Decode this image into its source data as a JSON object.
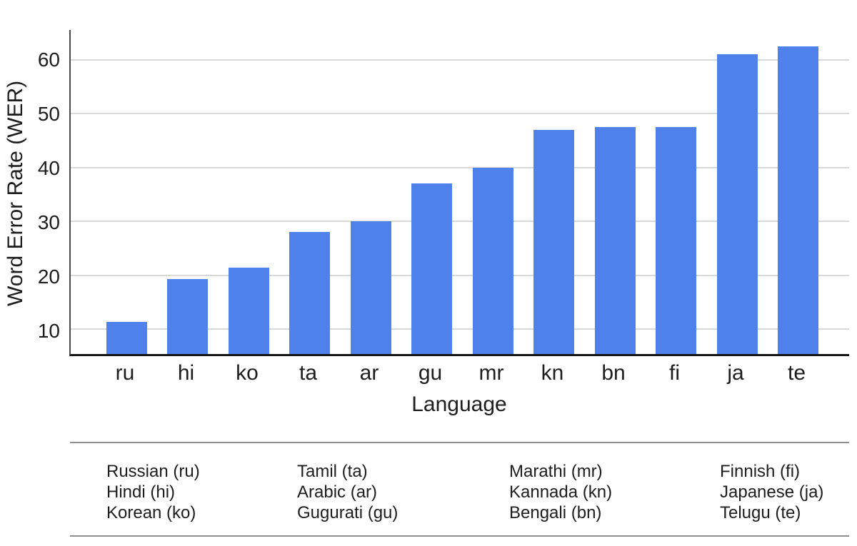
{
  "chart_data": {
    "type": "bar",
    "title": "",
    "xlabel": "Language",
    "ylabel": "Word Error Rate (WER)",
    "categories": [
      "ru",
      "hi",
      "ko",
      "ta",
      "ar",
      "gu",
      "mr",
      "kn",
      "bn",
      "fi",
      "ja",
      "te"
    ],
    "values": [
      11.4,
      19.3,
      21.4,
      28,
      30,
      37,
      40,
      47,
      47.5,
      47.5,
      61,
      62.5
    ],
    "yticks": [
      10,
      20,
      30,
      40,
      50,
      60
    ],
    "ylim": [
      5.4,
      65.5
    ],
    "grid": true,
    "legend_position": "none",
    "bar_color": "#4e81e9"
  },
  "colors": {
    "bar": "#4e81e9",
    "gridline": "#d9d9d9",
    "text": "#1d1d1d",
    "rule": "#8e8e8e"
  },
  "footnote": {
    "columns": [
      [
        "Russian (ru)",
        "Hindi (hi)",
        "Korean (ko)"
      ],
      [
        "Tamil (ta)",
        "Arabic (ar)",
        "Gugurati (gu)"
      ],
      [
        "Marathi (mr)",
        "Kannada (kn)",
        "Bengali (bn)"
      ],
      [
        "Finnish (fi)",
        "Japanese (ja)",
        "Telugu (te)"
      ]
    ]
  }
}
